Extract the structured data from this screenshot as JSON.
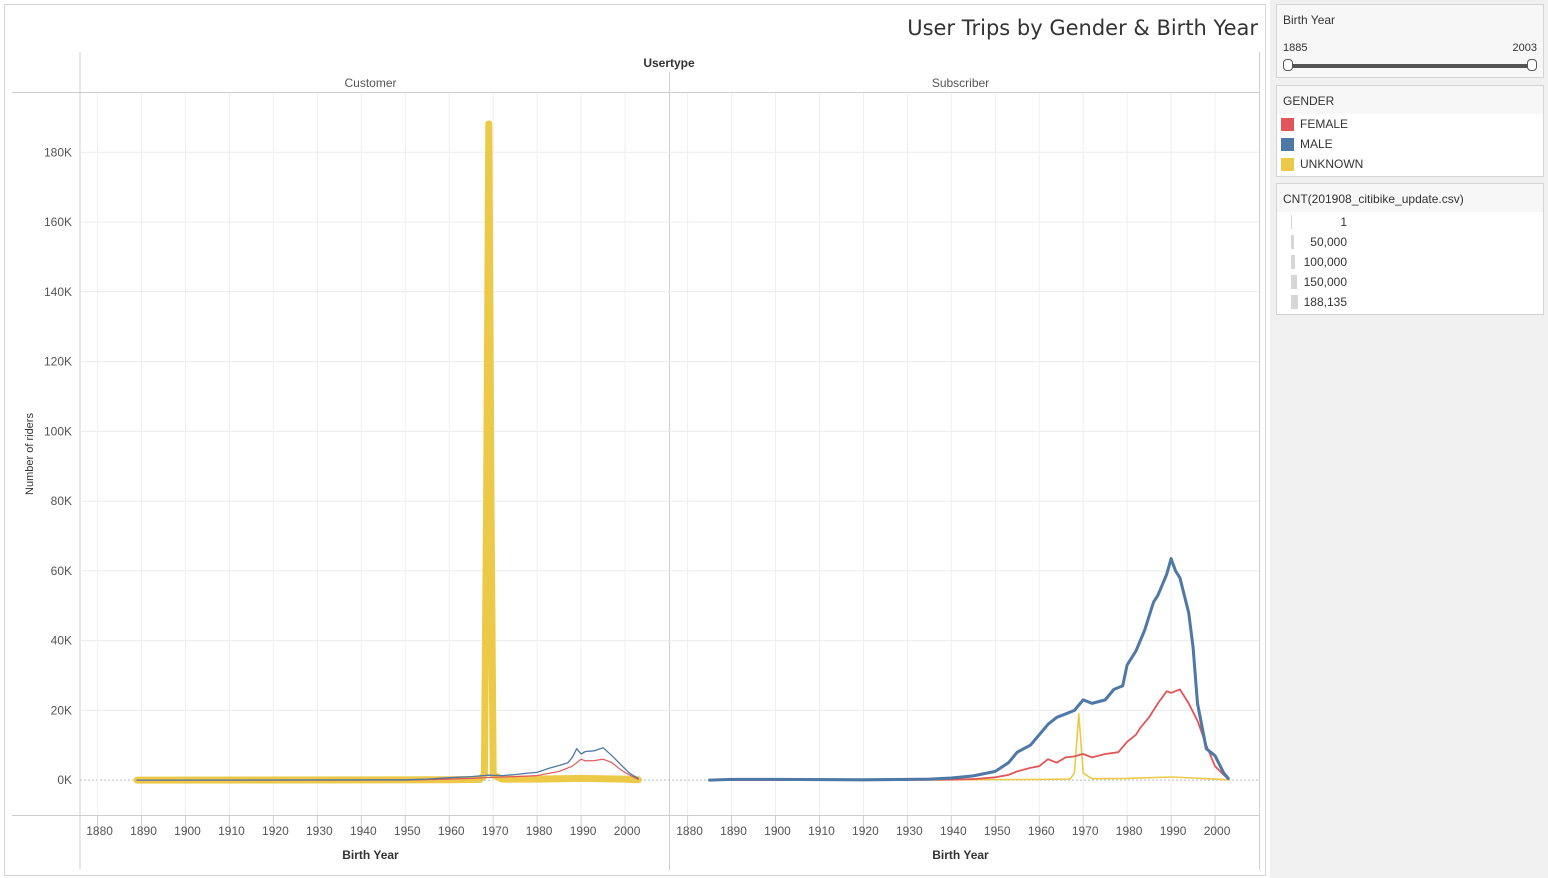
{
  "title": "User Trips by Gender & Birth Year",
  "filter": {
    "label": "Birth Year",
    "min_label": "1885",
    "max_label": "2003",
    "range": [
      1885,
      2003
    ]
  },
  "legend": {
    "title": "GENDER",
    "items": [
      {
        "label": "FEMALE",
        "color": "#e15759"
      },
      {
        "label": "MALE",
        "color": "#4e79a7"
      },
      {
        "label": "UNKNOWN",
        "color": "#edc948"
      }
    ]
  },
  "size_legend": {
    "title": "CNT(201908_citibike_update.csv)",
    "items": [
      {
        "label": "1",
        "value": 1
      },
      {
        "label": "50,000",
        "value": 50000
      },
      {
        "label": "100,000",
        "value": 100000
      },
      {
        "label": "150,000",
        "value": 150000
      },
      {
        "label": "188,135",
        "value": 188135
      }
    ]
  },
  "chart_data": {
    "type": "line",
    "title": "User Trips by Gender & Birth Year",
    "facet_title": "Usertype",
    "xlabel": "Birth Year",
    "ylabel": "Number of riders",
    "xlim": [
      1876,
      2010
    ],
    "ylim": [
      -10000,
      197000
    ],
    "x_ticks": [
      "1880",
      "1890",
      "1900",
      "1910",
      "1920",
      "1930",
      "1940",
      "1950",
      "1960",
      "1970",
      "1980",
      "1990",
      "2000"
    ],
    "y_ticks": [
      "0K",
      "20K",
      "40K",
      "60K",
      "80K",
      "100K",
      "120K",
      "140K",
      "160K",
      "180K"
    ],
    "grid": true,
    "panels": [
      {
        "name": "Customer",
        "series": [
          {
            "name": "FEMALE",
            "points": [
              [
                1889,
                0
              ],
              [
                1950,
                0
              ],
              [
                1960,
                300
              ],
              [
                1965,
                500
              ],
              [
                1970,
                800
              ],
              [
                1975,
                1000
              ],
              [
                1980,
                1300
              ],
              [
                1983,
                2000
              ],
              [
                1985,
                2500
              ],
              [
                1988,
                4000
              ],
              [
                1990,
                6000
              ],
              [
                1991,
                5500
              ],
              [
                1993,
                5600
              ],
              [
                1995,
                6000
              ],
              [
                1997,
                5000
              ],
              [
                1999,
                3000
              ],
              [
                2001,
                1500
              ],
              [
                2003,
                200
              ]
            ]
          },
          {
            "name": "MALE",
            "points": [
              [
                1889,
                0
              ],
              [
                1950,
                100
              ],
              [
                1955,
                300
              ],
              [
                1960,
                700
              ],
              [
                1965,
                1000
              ],
              [
                1969,
                1400
              ],
              [
                1972,
                1300
              ],
              [
                1975,
                1600
              ],
              [
                1978,
                2000
              ],
              [
                1980,
                2200
              ],
              [
                1983,
                3500
              ],
              [
                1985,
                4200
              ],
              [
                1987,
                5000
              ],
              [
                1988,
                6500
              ],
              [
                1989,
                9000
              ],
              [
                1990,
                7500
              ],
              [
                1991,
                8200
              ],
              [
                1993,
                8400
              ],
              [
                1995,
                9300
              ],
              [
                1997,
                7000
              ],
              [
                1999,
                4500
              ],
              [
                2001,
                2000
              ],
              [
                2003,
                500
              ]
            ]
          },
          {
            "name": "UNKNOWN",
            "points": [
              [
                1889,
                0
              ],
              [
                1960,
                100
              ],
              [
                1967,
                200
              ],
              [
                1968,
                1500
              ],
              [
                1968.5,
                80000
              ],
              [
                1969,
                188135
              ],
              [
                1969.5,
                80000
              ],
              [
                1970,
                1500
              ],
              [
                1972,
                300
              ],
              [
                1980,
                300
              ],
              [
                1990,
                500
              ],
              [
                2000,
                300
              ],
              [
                2003,
                100
              ]
            ]
          }
        ]
      },
      {
        "name": "Subscriber",
        "series": [
          {
            "name": "FEMALE",
            "points": [
              [
                1885,
                0
              ],
              [
                1930,
                50
              ],
              [
                1940,
                150
              ],
              [
                1945,
                300
              ],
              [
                1950,
                800
              ],
              [
                1953,
                1500
              ],
              [
                1955,
                2500
              ],
              [
                1958,
                3500
              ],
              [
                1960,
                4000
              ],
              [
                1962,
                6000
              ],
              [
                1964,
                5000
              ],
              [
                1966,
                6500
              ],
              [
                1968,
                6800
              ],
              [
                1970,
                7500
              ],
              [
                1972,
                6500
              ],
              [
                1975,
                7500
              ],
              [
                1978,
                8000
              ],
              [
                1980,
                11000
              ],
              [
                1982,
                13000
              ],
              [
                1983,
                15000
              ],
              [
                1985,
                18000
              ],
              [
                1987,
                22000
              ],
              [
                1989,
                25500
              ],
              [
                1990,
                25000
              ],
              [
                1991,
                25500
              ],
              [
                1992,
                26000
              ],
              [
                1994,
                22000
              ],
              [
                1996,
                17000
              ],
              [
                1998,
                10000
              ],
              [
                2000,
                4000
              ],
              [
                2002,
                1500
              ],
              [
                2003,
                300
              ]
            ]
          },
          {
            "name": "MALE",
            "points": [
              [
                1885,
                0
              ],
              [
                1890,
                200
              ],
              [
                1900,
                200
              ],
              [
                1920,
                100
              ],
              [
                1930,
                200
              ],
              [
                1935,
                300
              ],
              [
                1940,
                600
              ],
              [
                1945,
                1200
              ],
              [
                1950,
                2500
              ],
              [
                1953,
                5000
              ],
              [
                1955,
                8000
              ],
              [
                1958,
                10000
              ],
              [
                1960,
                13000
              ],
              [
                1962,
                16000
              ],
              [
                1964,
                18000
              ],
              [
                1966,
                19000
              ],
              [
                1968,
                20000
              ],
              [
                1970,
                23000
              ],
              [
                1972,
                22000
              ],
              [
                1975,
                23000
              ],
              [
                1977,
                26000
              ],
              [
                1979,
                27000
              ],
              [
                1980,
                33000
              ],
              [
                1982,
                37000
              ],
              [
                1984,
                43000
              ],
              [
                1986,
                51000
              ],
              [
                1987,
                53000
              ],
              [
                1988,
                56000
              ],
              [
                1989,
                59000
              ],
              [
                1990,
                63500
              ],
              [
                1991,
                60000
              ],
              [
                1992,
                58000
              ],
              [
                1994,
                48000
              ],
              [
                1995,
                38000
              ],
              [
                1996,
                22000
              ],
              [
                1998,
                9000
              ],
              [
                2000,
                7000
              ],
              [
                2002,
                2000
              ],
              [
                2003,
                500
              ]
            ]
          },
          {
            "name": "UNKNOWN",
            "points": [
              [
                1885,
                0
              ],
              [
                1940,
                100
              ],
              [
                1960,
                200
              ],
              [
                1967,
                300
              ],
              [
                1968,
                2000
              ],
              [
                1969,
                19000
              ],
              [
                1970,
                2000
              ],
              [
                1972,
                400
              ],
              [
                1980,
                500
              ],
              [
                1990,
                900
              ],
              [
                1995,
                600
              ],
              [
                2000,
                300
              ],
              [
                2003,
                100
              ]
            ]
          }
        ]
      }
    ]
  }
}
